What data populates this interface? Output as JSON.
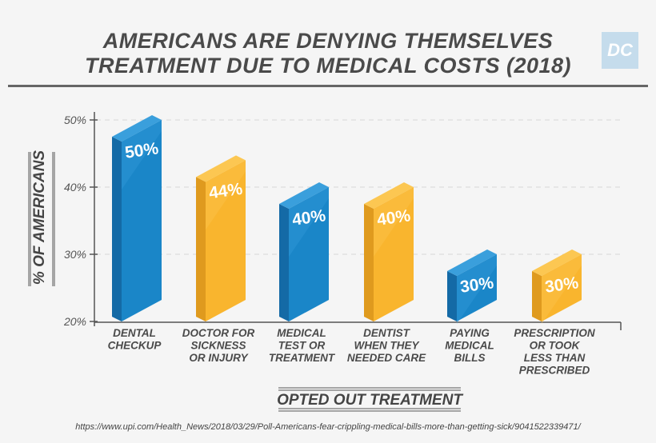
{
  "title_lines": [
    "AMERICANS ARE DENYING THEMSELVES",
    "TREATMENT DUE TO MEDICAL COSTS (2018)"
  ],
  "logo_text": "DC",
  "source_url": "https://www.upi.com/Health_News/2018/03/29/Poll-Americans-fear-crippling-medical-bills-more-than-getting-sick/9041522339471/",
  "chart_data": {
    "type": "bar",
    "title": "AMERICANS ARE DENYING THEMSELVES TREATMENT DUE TO MEDICAL COSTS (2018)",
    "xlabel": "OPTED OUT TREATMENT",
    "ylabel": "% OF AMERICANS",
    "ylim": [
      20,
      50
    ],
    "yticks": [
      "20%",
      "30%",
      "40%",
      "50%"
    ],
    "ytick_values": [
      20,
      30,
      40,
      50
    ],
    "grid": true,
    "categories": [
      [
        "DENTAL",
        "CHECKUP"
      ],
      [
        "DOCTOR FOR",
        "SICKNESS",
        "OR INJURY"
      ],
      [
        "MEDICAL",
        "TEST OR",
        "TREATMENT"
      ],
      [
        "DENTIST",
        "WHEN THEY",
        "NEEDED CARE"
      ],
      [
        "PAYING",
        "MEDICAL",
        "BILLS"
      ],
      [
        "PRESCRIPTION",
        "OR TOOK",
        "LESS THAN",
        "PRESCRIBED"
      ]
    ],
    "values": [
      50,
      44,
      40,
      40,
      30,
      30
    ],
    "data_labels": [
      "50%",
      "44%",
      "40%",
      "40%",
      "30%",
      "30%"
    ],
    "bar_colors": [
      "#1a86c8",
      "#f9b52e",
      "#1a86c8",
      "#f9b52e",
      "#1a86c8",
      "#f9b52e"
    ]
  }
}
